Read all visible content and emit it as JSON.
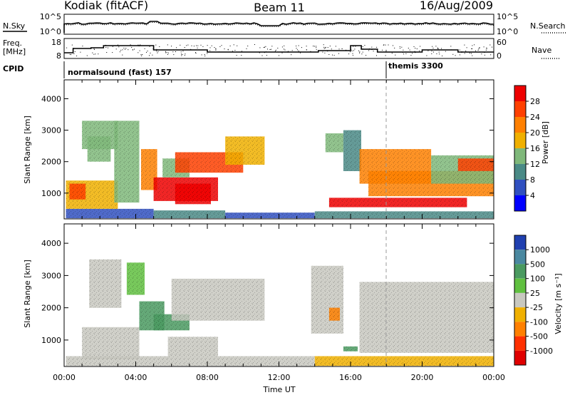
{
  "header": {
    "radar": "Kodiak (fitACF)",
    "beam": "Beam 11",
    "date": "16/Aug/2009"
  },
  "noise_panel": {
    "left_label": "N.Sky",
    "left_ticks": [
      "10^5",
      "10^0"
    ],
    "right_ticks": [
      "10^5",
      "10^0"
    ],
    "right_label": "N.Search",
    "right_label_style": "dotted"
  },
  "freq_panel": {
    "left_label_line1": "Freq.",
    "left_label_line2": "[MHz]",
    "left_ticks": [
      "18",
      "8"
    ],
    "right_ticks": [
      "60",
      "0"
    ],
    "right_label": "Nave",
    "right_label_style": "dotted"
  },
  "cpid_panel": {
    "label": "CPID",
    "programs": [
      {
        "name": "normalsound (fast) 157",
        "start_hour": 0
      },
      {
        "name": "themis 3300",
        "start_hour": 18
      }
    ]
  },
  "x_axis": {
    "title": "Time UT",
    "ticks": [
      "00:00",
      "04:00",
      "08:00",
      "12:00",
      "16:00",
      "20:00",
      "00:00"
    ],
    "range_hours": [
      0,
      24
    ]
  },
  "power_panel": {
    "ylabel": "Slant Range [km]",
    "yticks": [
      "1000",
      "2000",
      "3000",
      "4000"
    ],
    "ylim_km": [
      180,
      4600
    ],
    "colorbar_title": "Power [dB]",
    "colorbar_ticks": [
      "4",
      "8",
      "12",
      "16",
      "20",
      "24",
      "28"
    ],
    "colorbar_colors": [
      "#0000ff",
      "#3050c0",
      "#4a8a86",
      "#7fb87a",
      "#f0b000",
      "#ff8000",
      "#ff4000",
      "#ee0000"
    ]
  },
  "velocity_panel": {
    "ylabel": "Slant Range [km]",
    "yticks": [
      "1000",
      "2000",
      "3000",
      "4000"
    ],
    "ylim_km": [
      180,
      4600
    ],
    "colorbar_title": "Velocity [m s⁻¹]",
    "colorbar_ticks": [
      "1000",
      "500",
      "100",
      "25",
      "-25",
      "-100",
      "-500",
      "-1000"
    ],
    "colorbar_colors": [
      "#2040b0",
      "#4a88a0",
      "#4a9a60",
      "#60c040",
      "#c8c8c0",
      "#f0b000",
      "#ff8000",
      "#ff3000",
      "#e00000"
    ]
  },
  "chart_data": {
    "type": "heatmap",
    "time_range_hours": [
      0,
      24
    ],
    "range_km": [
      180,
      4600
    ],
    "program_change_hour": 18,
    "power_regions": [
      {
        "t0": 0.1,
        "t1": 5.0,
        "r0": 200,
        "r1": 500,
        "value_db": 6
      },
      {
        "t0": 5.0,
        "t1": 9.0,
        "r0": 200,
        "r1": 450,
        "value_db": 8
      },
      {
        "t0": 9.0,
        "t1": 14.0,
        "r0": 200,
        "r1": 380,
        "value_db": 6
      },
      {
        "t0": 14.0,
        "t1": 24.0,
        "r0": 200,
        "r1": 420,
        "value_db": 8
      },
      {
        "t0": 0.1,
        "t1": 3.0,
        "r0": 500,
        "r1": 1400,
        "value_db": 16
      },
      {
        "t0": 0.3,
        "t1": 1.2,
        "r0": 800,
        "r1": 1300,
        "value_db": 26
      },
      {
        "t0": 1.3,
        "t1": 2.6,
        "r0": 2000,
        "r1": 2800,
        "value_db": 14
      },
      {
        "t0": 1.0,
        "t1": 3.0,
        "r0": 2400,
        "r1": 3300,
        "value_db": 12
      },
      {
        "t0": 2.8,
        "t1": 4.2,
        "r0": 700,
        "r1": 3300,
        "value_db": 14
      },
      {
        "t0": 4.3,
        "t1": 5.2,
        "r0": 1100,
        "r1": 2400,
        "value_db": 22
      },
      {
        "t0": 5.0,
        "t1": 8.6,
        "r0": 750,
        "r1": 1500,
        "value_db": 28
      },
      {
        "t0": 6.2,
        "t1": 8.2,
        "r0": 650,
        "r1": 1300,
        "value_db": 30
      },
      {
        "t0": 5.5,
        "t1": 7.0,
        "r0": 1500,
        "r1": 2100,
        "value_db": 12
      },
      {
        "t0": 6.2,
        "t1": 10.0,
        "r0": 1650,
        "r1": 2300,
        "value_db": 26
      },
      {
        "t0": 9.0,
        "t1": 11.2,
        "r0": 1900,
        "r1": 2800,
        "value_db": 18
      },
      {
        "t0": 14.6,
        "t1": 15.6,
        "r0": 2300,
        "r1": 2900,
        "value_db": 12
      },
      {
        "t0": 15.6,
        "t1": 16.6,
        "r0": 1700,
        "r1": 3000,
        "value_db": 10
      },
      {
        "t0": 16.5,
        "t1": 20.5,
        "r0": 1300,
        "r1": 2400,
        "value_db": 20
      },
      {
        "t0": 14.8,
        "t1": 22.5,
        "r0": 550,
        "r1": 850,
        "value_db": 28
      },
      {
        "t0": 17.0,
        "t1": 24.0,
        "r0": 900,
        "r1": 1700,
        "value_db": 22
      },
      {
        "t0": 20.5,
        "t1": 24.0,
        "r0": 1300,
        "r1": 2200,
        "value_db": 14
      },
      {
        "t0": 22.0,
        "t1": 24.0,
        "r0": 1700,
        "r1": 2100,
        "value_db": 24
      }
    ],
    "velocity_regions": [
      {
        "t0": 0.1,
        "t1": 14.0,
        "r0": 200,
        "r1": 500,
        "value_ms": 0
      },
      {
        "t0": 14.0,
        "t1": 24.0,
        "r0": 200,
        "r1": 500,
        "value_ms": -90
      },
      {
        "t0": 1.0,
        "t1": 4.2,
        "r0": 400,
        "r1": 1400,
        "value_ms": 0
      },
      {
        "t0": 1.4,
        "t1": 3.2,
        "r0": 2000,
        "r1": 3500,
        "value_ms": 0
      },
      {
        "t0": 3.5,
        "t1": 4.5,
        "r0": 2400,
        "r1": 3400,
        "value_ms": 80
      },
      {
        "t0": 4.2,
        "t1": 5.6,
        "r0": 1300,
        "r1": 2200,
        "value_ms": 400
      },
      {
        "t0": 5.0,
        "t1": 7.0,
        "r0": 1300,
        "r1": 1800,
        "value_ms": 150
      },
      {
        "t0": 5.8,
        "t1": 8.6,
        "r0": 500,
        "r1": 1100,
        "value_ms": 0
      },
      {
        "t0": 6.0,
        "t1": 11.2,
        "r0": 1600,
        "r1": 2900,
        "value_ms": 0
      },
      {
        "t0": 13.8,
        "t1": 15.6,
        "r0": 1200,
        "r1": 3300,
        "value_ms": 0
      },
      {
        "t0": 14.8,
        "t1": 15.4,
        "r0": 1600,
        "r1": 2000,
        "value_ms": -450
      },
      {
        "t0": 15.6,
        "t1": 16.4,
        "r0": 650,
        "r1": 800,
        "value_ms": 150
      },
      {
        "t0": 16.5,
        "t1": 24.0,
        "r0": 600,
        "r1": 2800,
        "value_ms": 0
      }
    ]
  }
}
